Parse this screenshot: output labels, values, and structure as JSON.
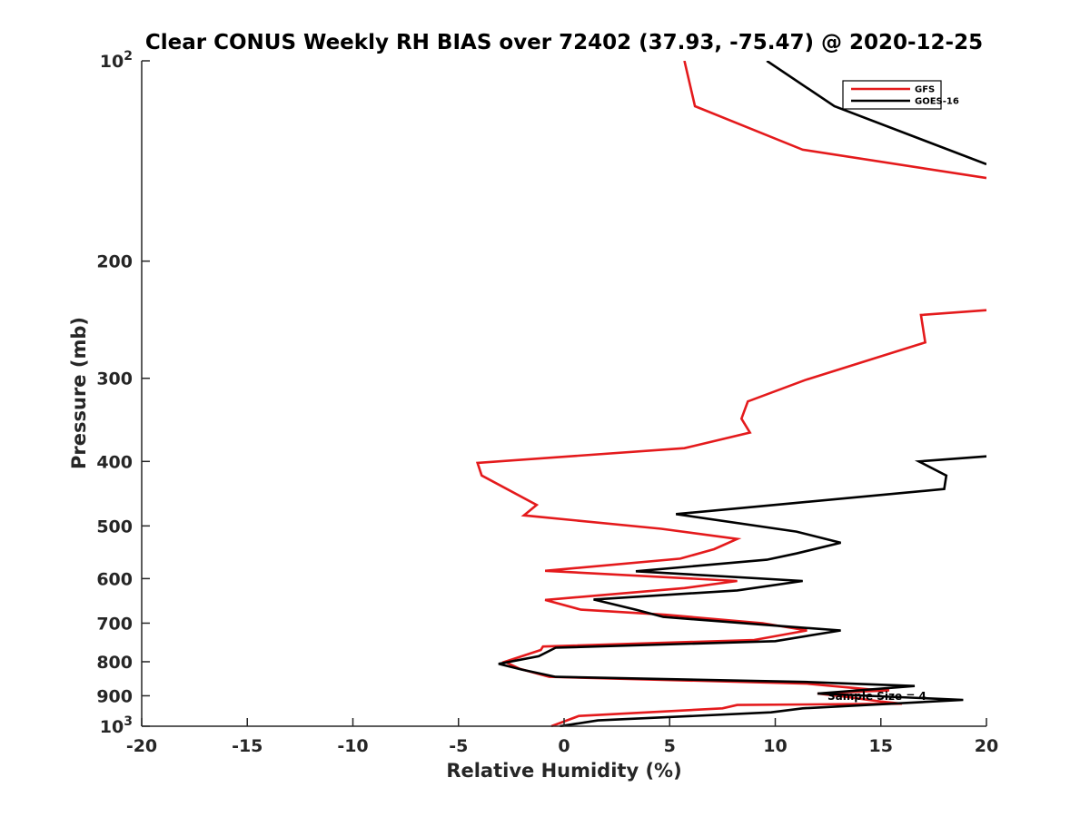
{
  "chart_data": {
    "type": "line",
    "title": "Clear CONUS Weekly RH BIAS over 72402 (37.93, -75.47) @ 2020-12-25",
    "xlabel": "Relative Humidity (%)",
    "ylabel": "Pressure (mb)",
    "xlim": [
      -20,
      20
    ],
    "ylim": [
      100,
      1000
    ],
    "y_scale": "log",
    "y_reversed": true,
    "grid": false,
    "legend_position": "top-right",
    "x_ticks": [
      -20,
      -15,
      -10,
      -5,
      0,
      5,
      10,
      15,
      20
    ],
    "x_tick_labels": [
      "-20",
      "-15",
      "-10",
      "-5",
      "0",
      "5",
      "10",
      "15",
      "20"
    ],
    "y_ticks": [
      100,
      200,
      300,
      400,
      500,
      600,
      700,
      800,
      900,
      1000
    ],
    "y_tick_labels": [
      {
        "base": "10",
        "exp": "2"
      },
      {
        "base": "200",
        "exp": ""
      },
      {
        "base": "300",
        "exp": ""
      },
      {
        "base": "400",
        "exp": ""
      },
      {
        "base": "500",
        "exp": ""
      },
      {
        "base": "600",
        "exp": ""
      },
      {
        "base": "700",
        "exp": ""
      },
      {
        "base": "800",
        "exp": ""
      },
      {
        "base": "900",
        "exp": ""
      },
      {
        "base": "10",
        "exp": "3"
      }
    ],
    "annotation": "Sample Size = 4",
    "series": [
      {
        "name": "GFS",
        "color": "#e41a1c",
        "points": [
          [
            5.7,
            100
          ],
          [
            6.2,
            117
          ],
          [
            11.3,
            136
          ],
          [
            20,
            150
          ],
          [
            null,
            null
          ],
          [
            20,
            237
          ],
          [
            16.9,
            241
          ],
          [
            17.1,
            265
          ],
          [
            11.4,
            302
          ],
          [
            8.7,
            325
          ],
          [
            8.4,
            345
          ],
          [
            8.8,
            362
          ],
          [
            5.7,
            382
          ],
          [
            -4.1,
            402
          ],
          [
            -3.9,
            420
          ],
          [
            -1.3,
            465
          ],
          [
            -1.9,
            482
          ],
          [
            4.6,
            505
          ],
          [
            8.2,
            523
          ],
          [
            7.1,
            542
          ],
          [
            5.5,
            560
          ],
          [
            -0.9,
            584
          ],
          [
            8.2,
            605
          ],
          [
            5.7,
            620
          ],
          [
            -0.9,
            646
          ],
          [
            0.8,
            668
          ],
          [
            4.8,
            680
          ],
          [
            9.4,
            700
          ],
          [
            11.5,
            718
          ],
          [
            9.0,
            742
          ],
          [
            -1.0,
            759
          ],
          [
            -1.1,
            768
          ],
          [
            -2.8,
            800
          ],
          [
            -2.1,
            820
          ],
          [
            -0.7,
            843
          ],
          [
            11.5,
            863
          ],
          [
            14.4,
            880
          ],
          [
            15.4,
            883
          ],
          [
            12.0,
            893
          ],
          [
            13.3,
            903
          ],
          [
            15.0,
            918
          ],
          [
            16.0,
            925
          ],
          [
            8.2,
            929
          ],
          [
            7.5,
            940
          ],
          [
            0.7,
            965
          ],
          [
            -0.6,
            1000
          ]
        ]
      },
      {
        "name": "GOES-16",
        "color": "#000000",
        "points": [
          [
            9.6,
            100
          ],
          [
            12.8,
            117
          ],
          [
            20,
            143
          ],
          [
            null,
            null
          ],
          [
            20,
            393
          ],
          [
            16.8,
            400
          ],
          [
            18.1,
            420
          ],
          [
            18.0,
            440
          ],
          [
            10.9,
            462
          ],
          [
            5.3,
            480
          ],
          [
            11.0,
            510
          ],
          [
            13.1,
            530
          ],
          [
            11.0,
            550
          ],
          [
            9.6,
            562
          ],
          [
            3.4,
            585
          ],
          [
            11.3,
            605
          ],
          [
            8.2,
            625
          ],
          [
            1.4,
            645
          ],
          [
            3.4,
            668
          ],
          [
            4.7,
            685
          ],
          [
            10.5,
            708
          ],
          [
            13.1,
            718
          ],
          [
            10.0,
            745
          ],
          [
            -0.4,
            762
          ],
          [
            -1.2,
            785
          ],
          [
            -3.1,
            806
          ],
          [
            -2.0,
            822
          ],
          [
            -0.4,
            843
          ],
          [
            11.4,
            858
          ],
          [
            16.6,
            870
          ],
          [
            12.0,
            893
          ],
          [
            15.4,
            903
          ],
          [
            18.9,
            913
          ],
          [
            11.3,
            940
          ],
          [
            9.8,
            953
          ],
          [
            1.6,
            980
          ],
          [
            -0.2,
            1000
          ]
        ]
      }
    ]
  }
}
